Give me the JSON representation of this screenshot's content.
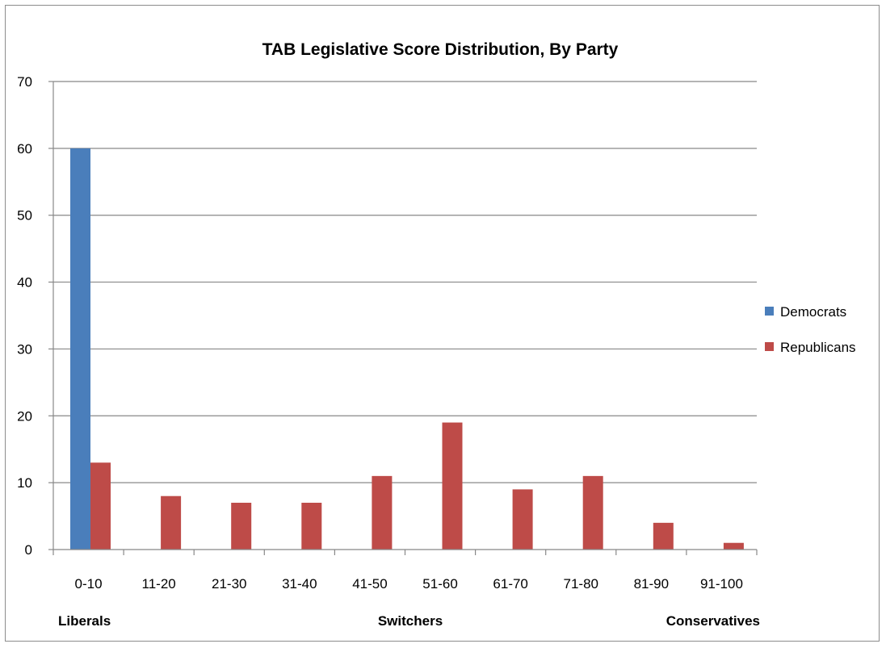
{
  "chart_data": {
    "type": "bar",
    "title": "TAB Legislative Score Distribution, By Party",
    "xlabel": "",
    "ylabel": "",
    "categories": [
      "0-10",
      "11-20",
      "21-30",
      "31-40",
      "41-50",
      "51-60",
      "61-70",
      "71-80",
      "81-90",
      "91-100"
    ],
    "series": [
      {
        "name": "Democrats",
        "color": "#4a7ebb",
        "values": [
          60,
          0,
          0,
          0,
          0,
          0,
          0,
          0,
          0,
          0
        ]
      },
      {
        "name": "Republicans",
        "color": "#be4b48",
        "values": [
          13,
          8,
          7,
          7,
          11,
          19,
          9,
          11,
          4,
          1
        ]
      }
    ],
    "ylim": [
      0,
      70
    ],
    "yticks": [
      0,
      10,
      20,
      30,
      40,
      50,
      60,
      70
    ],
    "grid": true,
    "legend": "right",
    "group_labels": {
      "left": "Liberals",
      "center": "Switchers",
      "right": "Conservatives"
    }
  }
}
